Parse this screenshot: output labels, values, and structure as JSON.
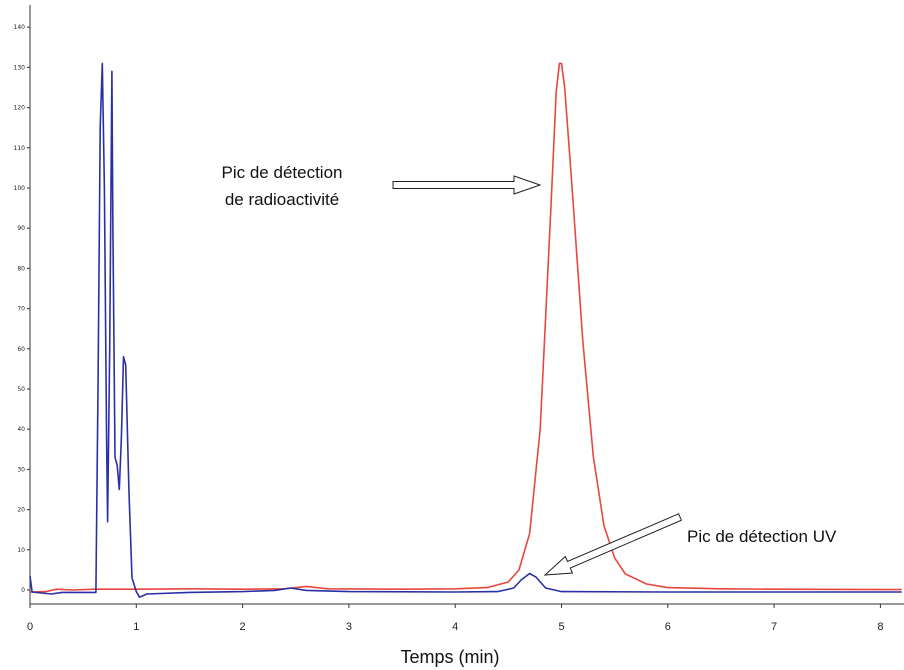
{
  "chart_data": {
    "type": "line",
    "title": "",
    "xlabel": "Temps (min)",
    "ylabel": "",
    "xlim": [
      0,
      8.2
    ],
    "ylim": [
      -5,
      145
    ],
    "grid": false,
    "x_ticks": [
      "0",
      "1",
      "2",
      "3",
      "4",
      "5",
      "6",
      "7",
      "8"
    ],
    "y_ticks": [
      "0",
      "10",
      "20",
      "30",
      "40",
      "50",
      "60",
      "70",
      "80",
      "90",
      "100",
      "110",
      "120",
      "130",
      "140"
    ],
    "series": [
      {
        "color": "#e8463f",
        "points": [
          [
            0,
            -0.5
          ],
          [
            0.15,
            -0.4
          ],
          [
            0.25,
            0.2
          ],
          [
            0.4,
            0
          ],
          [
            0.6,
            0.2
          ],
          [
            1.0,
            0.2
          ],
          [
            1.5,
            0.3
          ],
          [
            2.0,
            0.2
          ],
          [
            2.4,
            0.3
          ],
          [
            2.6,
            0.9
          ],
          [
            2.8,
            0.3
          ],
          [
            3.5,
            0.2
          ],
          [
            4.0,
            0.3
          ],
          [
            4.3,
            0.6
          ],
          [
            4.5,
            2
          ],
          [
            4.6,
            5
          ],
          [
            4.7,
            14
          ],
          [
            4.8,
            40
          ],
          [
            4.9,
            95
          ],
          [
            4.95,
            124
          ],
          [
            4.98,
            131
          ],
          [
            5.0,
            131
          ],
          [
            5.03,
            125
          ],
          [
            5.1,
            100
          ],
          [
            5.2,
            62
          ],
          [
            5.3,
            33
          ],
          [
            5.4,
            16
          ],
          [
            5.5,
            8
          ],
          [
            5.6,
            4
          ],
          [
            5.8,
            1.5
          ],
          [
            6.0,
            0.6
          ],
          [
            6.5,
            0.3
          ],
          [
            7.0,
            0.2
          ],
          [
            8.2,
            0.1
          ]
        ]
      },
      {
        "color": "#2b2fa6",
        "points": [
          [
            0,
            3.5
          ],
          [
            0.02,
            -0.5
          ],
          [
            0.2,
            -1
          ],
          [
            0.3,
            -0.6
          ],
          [
            0.62,
            -0.6
          ],
          [
            0.64,
            50
          ],
          [
            0.66,
            115
          ],
          [
            0.68,
            131
          ],
          [
            0.7,
            100
          ],
          [
            0.72,
            40
          ],
          [
            0.73,
            17
          ],
          [
            0.75,
            60
          ],
          [
            0.77,
            129
          ],
          [
            0.78,
            90
          ],
          [
            0.8,
            33
          ],
          [
            0.82,
            31
          ],
          [
            0.84,
            25
          ],
          [
            0.86,
            38
          ],
          [
            0.88,
            58
          ],
          [
            0.9,
            56
          ],
          [
            0.93,
            25
          ],
          [
            0.96,
            3
          ],
          [
            1.0,
            -0.4
          ],
          [
            1.03,
            -1.8
          ],
          [
            1.1,
            -1
          ],
          [
            1.5,
            -0.6
          ],
          [
            2.0,
            -0.4
          ],
          [
            2.3,
            -0.1
          ],
          [
            2.45,
            0.5
          ],
          [
            2.6,
            -0.1
          ],
          [
            3.0,
            -0.4
          ],
          [
            4.0,
            -0.5
          ],
          [
            4.4,
            -0.4
          ],
          [
            4.55,
            0.5
          ],
          [
            4.62,
            2.5
          ],
          [
            4.7,
            4.1
          ],
          [
            4.76,
            3.2
          ],
          [
            4.85,
            0.5
          ],
          [
            5.0,
            -0.4
          ],
          [
            6.0,
            -0.5
          ],
          [
            8.2,
            -0.5
          ]
        ]
      }
    ],
    "annotations": [
      {
        "lines": [
          "Pic de détection",
          "de radioactivité"
        ],
        "points_to": [
          4.95,
          105
        ]
      },
      {
        "lines": [
          "Pic de détection UV"
        ],
        "points_to": [
          4.78,
          4
        ]
      }
    ]
  }
}
